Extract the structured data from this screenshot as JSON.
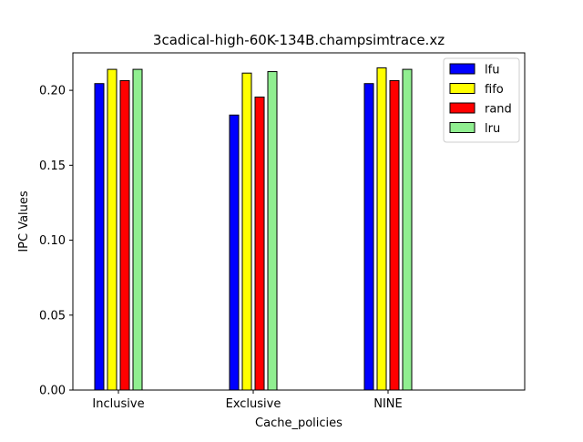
{
  "chart_data": {
    "type": "bar",
    "title": "3cadical-high-60K-134B.champsimtrace.xz",
    "xlabel": "Cache_policies",
    "ylabel": "IPC Values",
    "categories": [
      "Inclusive",
      "Exclusive",
      "NINE"
    ],
    "series": [
      {
        "name": "lfu",
        "color": "#0000ff",
        "values": [
          0.2045,
          0.1835,
          0.2045
        ]
      },
      {
        "name": "fifo",
        "color": "#ffff00",
        "values": [
          0.214,
          0.2115,
          0.215
        ]
      },
      {
        "name": "rand",
        "color": "#ff0000",
        "values": [
          0.2065,
          0.1955,
          0.2065
        ]
      },
      {
        "name": "lru",
        "color": "#90ee90",
        "values": [
          0.214,
          0.2125,
          0.214
        ]
      }
    ],
    "ylim": [
      0,
      0.225
    ],
    "yticks": [
      "0.00",
      "0.05",
      "0.10",
      "0.15",
      "0.20"
    ],
    "ytick_values": [
      0,
      0.05,
      0.1,
      0.15,
      0.2
    ],
    "grid": false,
    "legend_position": "top-right"
  }
}
